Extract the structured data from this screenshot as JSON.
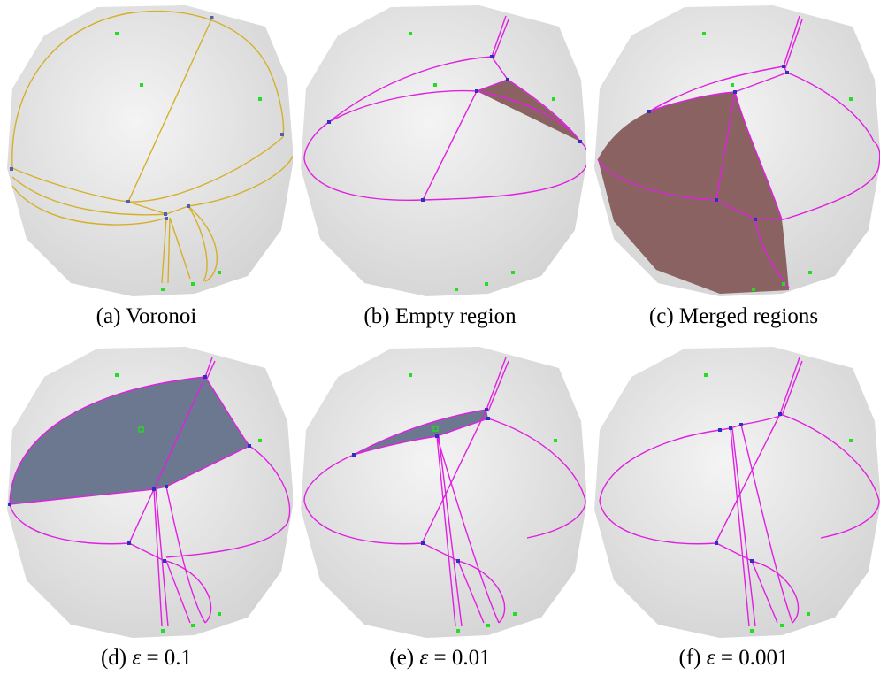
{
  "panels": [
    {
      "id": "a",
      "letter": "(a)",
      "text": "Voronoi",
      "eps": "",
      "value": ""
    },
    {
      "id": "b",
      "letter": "(b)",
      "text": "Empty region",
      "eps": "",
      "value": ""
    },
    {
      "id": "c",
      "letter": "(c)",
      "text": "Merged regions",
      "eps": "",
      "value": ""
    },
    {
      "id": "d",
      "letter": "(d)",
      "text": "",
      "eps": "ε",
      "value": " = 0.1"
    },
    {
      "id": "e",
      "letter": "(e)",
      "text": "",
      "eps": "ε",
      "value": " = 0.01"
    },
    {
      "id": "f",
      "letter": "(f)",
      "text": "",
      "eps": "ε",
      "value": " = 0.001"
    }
  ],
  "colors": {
    "sphere": "#e8e8e8",
    "voronoi_edge": "#d4b02a",
    "boundary_edge": "#e020e0",
    "site": "#22dd22",
    "vertex": "#3030c0",
    "region_brown": "#8a6262",
    "region_slate": "#6b7890"
  }
}
